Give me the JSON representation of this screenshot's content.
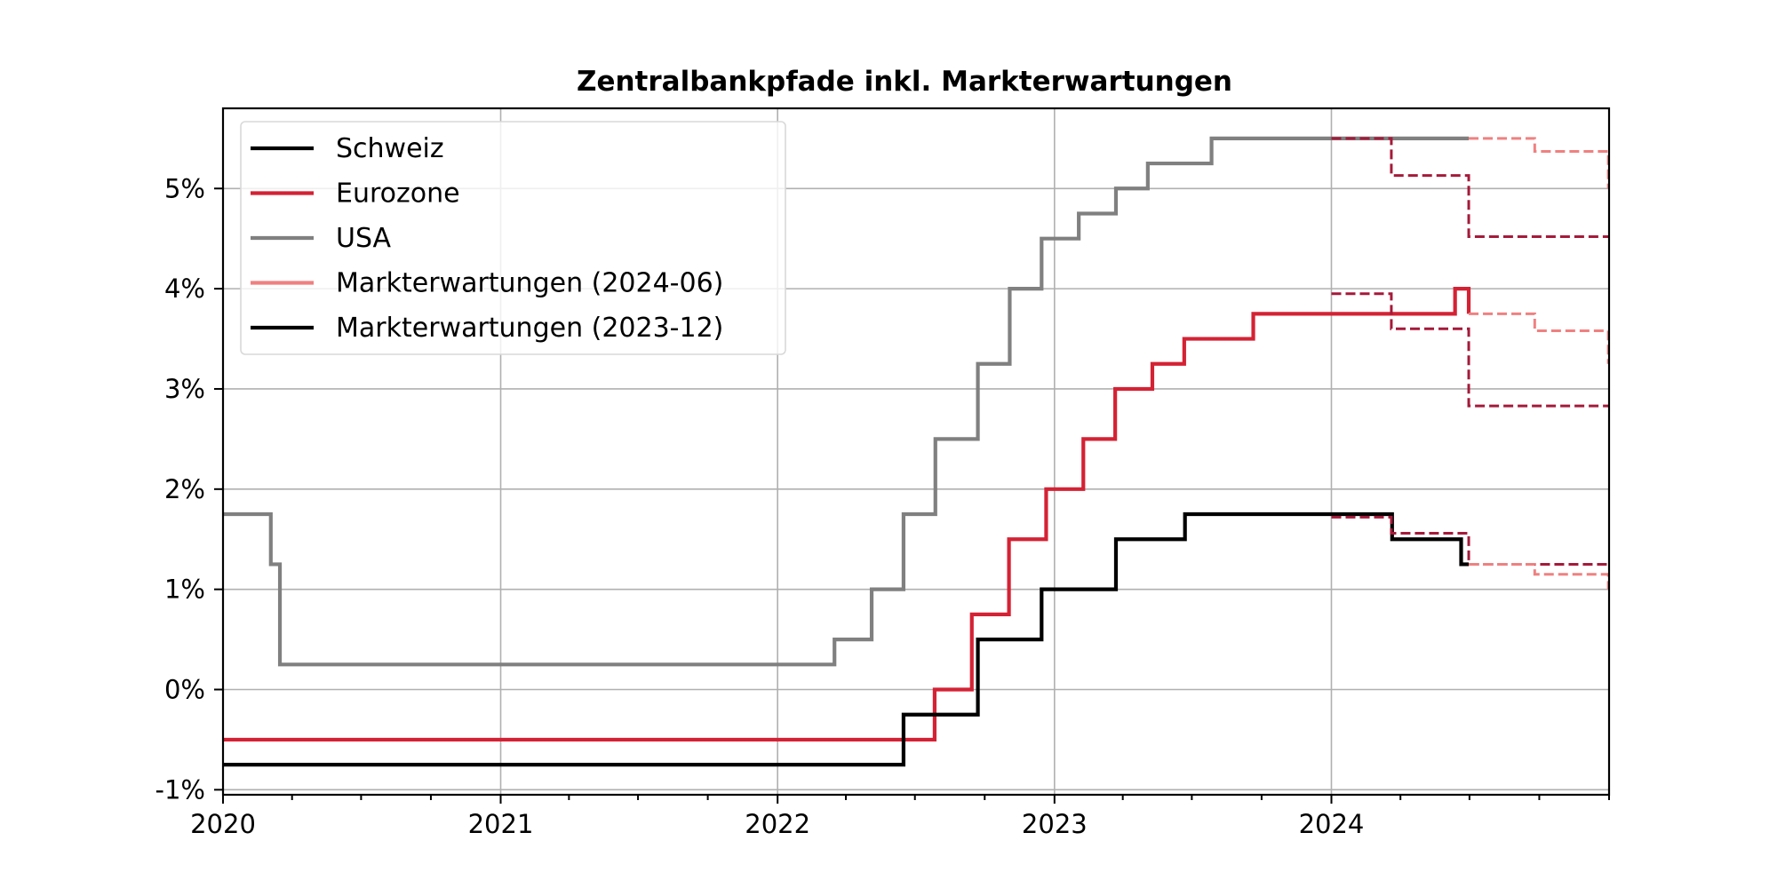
{
  "chart_data": {
    "type": "line",
    "title": "Zentralbankpfade inkl. Markterwartungen",
    "xlabel": "",
    "ylabel": "",
    "x_tick_labels": [
      "2020",
      "2021",
      "2022",
      "2023",
      "2024"
    ],
    "y_tick_labels": [
      "-1%",
      "0%",
      "1%",
      "2%",
      "3%",
      "4%",
      "5%"
    ],
    "xlim": [
      "2020-01-01",
      "2025-01-01"
    ],
    "ylim": [
      -1.05,
      5.8
    ],
    "grid": true,
    "legend_position": "top-left",
    "step_style": "post",
    "legend": [
      {
        "label": "Schweiz",
        "color": "#000000",
        "dash": false
      },
      {
        "label": "Eurozone",
        "color": "#d42234",
        "dash": false
      },
      {
        "label": "USA",
        "color": "#808080",
        "dash": false
      },
      {
        "label": "Markterwartungen (2024-06)",
        "color": "#f08080",
        "dash": false
      },
      {
        "label": "Markterwartungen (2023-12)",
        "color": "#000000",
        "dash": false
      }
    ],
    "series": [
      {
        "name": "USA",
        "color": "#808080",
        "dash": false,
        "x": [
          "2020-01-01",
          "2020-03-04",
          "2020-03-16",
          "2022-03-17",
          "2022-05-05",
          "2022-06-16",
          "2022-07-28",
          "2022-09-22",
          "2022-11-03",
          "2022-12-15",
          "2023-02-02",
          "2023-03-23",
          "2023-05-04",
          "2023-07-27",
          "2024-06-30"
        ],
        "values": [
          1.75,
          1.25,
          0.25,
          0.5,
          1.0,
          1.75,
          2.5,
          3.25,
          4.0,
          4.5,
          4.75,
          5.0,
          5.25,
          5.5,
          5.5
        ]
      },
      {
        "name": "Eurozone",
        "color": "#d42234",
        "dash": false,
        "x": [
          "2020-01-01",
          "2022-07-27",
          "2022-09-14",
          "2022-11-02",
          "2022-12-21",
          "2023-02-08",
          "2023-03-22",
          "2023-05-10",
          "2023-06-21",
          "2023-09-20",
          "2024-06-12",
          "2024-06-30"
        ],
        "values": [
          -0.5,
          0.0,
          0.75,
          1.5,
          2.0,
          2.5,
          3.0,
          3.25,
          3.5,
          3.75,
          4.0,
          3.75
        ]
      },
      {
        "name": "Schweiz",
        "color": "#000000",
        "dash": false,
        "x": [
          "2020-01-01",
          "2022-06-16",
          "2022-09-22",
          "2022-12-15",
          "2023-03-23",
          "2023-06-22",
          "2024-03-21",
          "2024-06-20",
          "2024-06-30"
        ],
        "values": [
          -0.75,
          -0.25,
          0.5,
          1.0,
          1.5,
          1.75,
          1.5,
          1.25,
          1.25
        ]
      },
      {
        "name": "Markterwartungen (2023-12)",
        "color": "#a51a3a",
        "dash": true,
        "x": [
          "2024-01-01",
          "2024-03-20",
          "2024-06-30",
          "2024-12-31"
        ],
        "values": [
          5.5,
          5.13,
          4.52,
          4.52
        ]
      },
      {
        "name": "Markterwartungen (2023-12)",
        "color": "#a51a3a",
        "dash": true,
        "x": [
          "2024-01-01",
          "2024-03-20",
          "2024-06-30",
          "2024-12-31"
        ],
        "values": [
          3.95,
          3.6,
          2.83,
          2.83
        ]
      },
      {
        "name": "Markterwartungen (2023-12)",
        "color": "#a51a3a",
        "dash": true,
        "x": [
          "2024-01-01",
          "2024-03-20",
          "2024-06-30",
          "2024-12-31"
        ],
        "values": [
          1.72,
          1.56,
          1.25,
          1.25
        ]
      },
      {
        "name": "Markterwartungen (2024-06)",
        "color": "#f08080",
        "dash": true,
        "x": [
          "2024-06-30",
          "2024-09-25",
          "2024-12-31"
        ],
        "values": [
          5.5,
          5.37,
          5.0
        ]
      },
      {
        "name": "Markterwartungen (2024-06)",
        "color": "#f08080",
        "dash": true,
        "x": [
          "2024-06-30",
          "2024-09-25",
          "2024-12-31"
        ],
        "values": [
          3.75,
          3.58,
          3.25
        ]
      },
      {
        "name": "Markterwartungen (2024-06)",
        "color": "#f08080",
        "dash": true,
        "x": [
          "2024-06-30",
          "2024-09-25",
          "2024-12-31"
        ],
        "values": [
          1.25,
          1.15,
          1.0
        ]
      }
    ]
  }
}
